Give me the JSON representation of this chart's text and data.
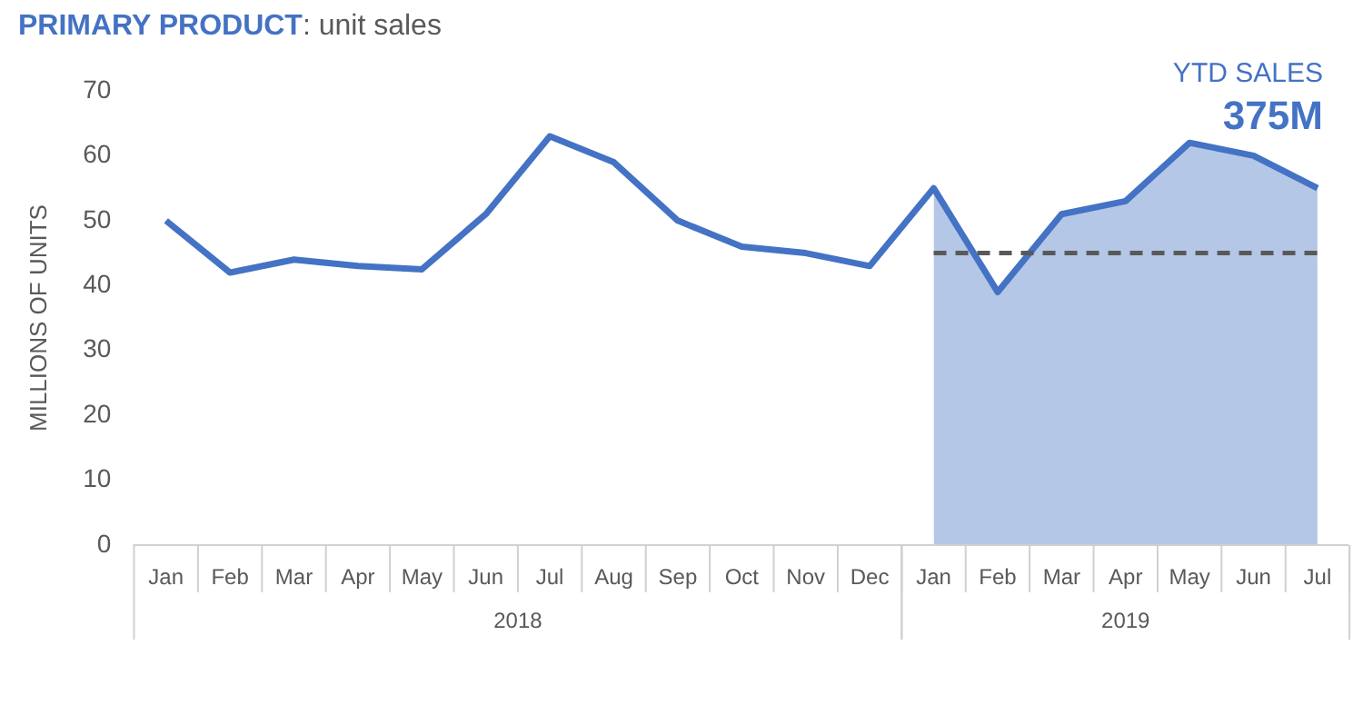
{
  "chart_data": {
    "type": "line",
    "title": "PRIMARY PRODUCT: unit sales",
    "ylabel": "MILLIONS OF UNITS",
    "x": [
      "2018-01",
      "2018-02",
      "2018-03",
      "2018-04",
      "2018-05",
      "2018-06",
      "2018-07",
      "2018-08",
      "2018-09",
      "2018-10",
      "2018-11",
      "2018-12",
      "2019-01",
      "2019-02",
      "2019-03",
      "2019-04",
      "2019-05",
      "2019-06",
      "2019-07"
    ],
    "xlim": [
      "2017-12-16",
      "2019-07-16"
    ],
    "xticks": [
      {
        "value": "2018-01",
        "label": "Jan"
      },
      {
        "value": "2018-02",
        "label": "Feb"
      },
      {
        "value": "2018-03",
        "label": "Mar"
      },
      {
        "value": "2018-04",
        "label": "Apr"
      },
      {
        "value": "2018-05",
        "label": "May"
      },
      {
        "value": "2018-06",
        "label": "Jun"
      },
      {
        "value": "2018-07",
        "label": "Jul"
      },
      {
        "value": "2018-08",
        "label": "Aug"
      },
      {
        "value": "2018-09",
        "label": "Sep"
      },
      {
        "value": "2018-10",
        "label": "Oct"
      },
      {
        "value": "2018-11",
        "label": "Nov"
      },
      {
        "value": "2018-12",
        "label": "Dec"
      },
      {
        "value": "2019-01",
        "label": "Jan"
      },
      {
        "value": "2019-02",
        "label": "Feb"
      },
      {
        "value": "2019-03",
        "label": "Mar"
      },
      {
        "value": "2019-04",
        "label": "Apr"
      },
      {
        "value": "2019-05",
        "label": "May"
      },
      {
        "value": "2019-06",
        "label": "Jun"
      },
      {
        "value": "2019-07",
        "label": "Jul"
      }
    ],
    "series": [
      {
        "type": "area",
        "color": "#b4c7e7",
        "values": [
          null,
          null,
          null,
          null,
          null,
          null,
          null,
          null,
          null,
          null,
          null,
          null,
          55,
          39,
          51,
          53,
          62,
          60,
          55
        ]
      },
      {
        "color": "#4472c4",
        "values": [
          50,
          42,
          44,
          43,
          42.5,
          51,
          63,
          59,
          50,
          46,
          45,
          43,
          55,
          39,
          51,
          53,
          62,
          60,
          55
        ]
      }
    ],
    "ylim": [
      0,
      70
    ],
    "yticks": [
      0,
      10,
      20,
      30,
      40,
      50,
      60,
      70
    ],
    "grid": false,
    "legend": false,
    "marker": "none",
    "line_style": "solid",
    "ref_lines": [
      {
        "axis": "y",
        "value": 45,
        "color": "#595959",
        "line_style": "dashed"
      }
    ],
    "annotations": [
      "YTD SALES",
      "375M",
      "2018",
      "2019"
    ]
  }
}
